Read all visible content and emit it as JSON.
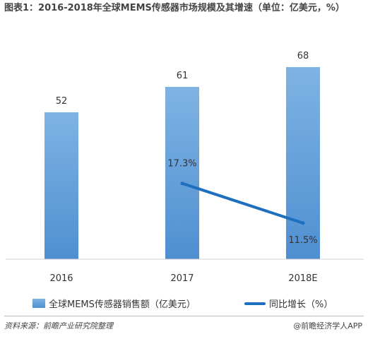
{
  "title": "图表1：2016-2018年全球MEMS传感器市场规模及其增速（单位：亿美元，%）",
  "footer": {
    "source": "资料来源：前瞻产业研究院整理",
    "brand": "@前瞻经济学人APP"
  },
  "colors": {
    "bar": "#5b9bd5",
    "line": "#1f6fbf"
  },
  "chart_data": {
    "type": "bar",
    "categories": [
      "2016",
      "2017",
      "2018E"
    ],
    "series": [
      {
        "name": "全球MEMS传感器销售额（亿美元）",
        "type": "bar",
        "values": [
          52,
          61,
          68
        ],
        "labels": [
          "52",
          "61",
          "68"
        ]
      },
      {
        "name": "同比增长（%）",
        "type": "line",
        "points": [
          {
            "category": "2017",
            "value": 17.3,
            "label": "17.3%"
          },
          {
            "category": "2018E",
            "value": 11.5,
            "label": "11.5%"
          }
        ]
      }
    ],
    "bar_ylim": [
      0,
      80
    ],
    "line_ylim": [
      0,
      20
    ],
    "grid": false,
    "legend": "bottom"
  }
}
